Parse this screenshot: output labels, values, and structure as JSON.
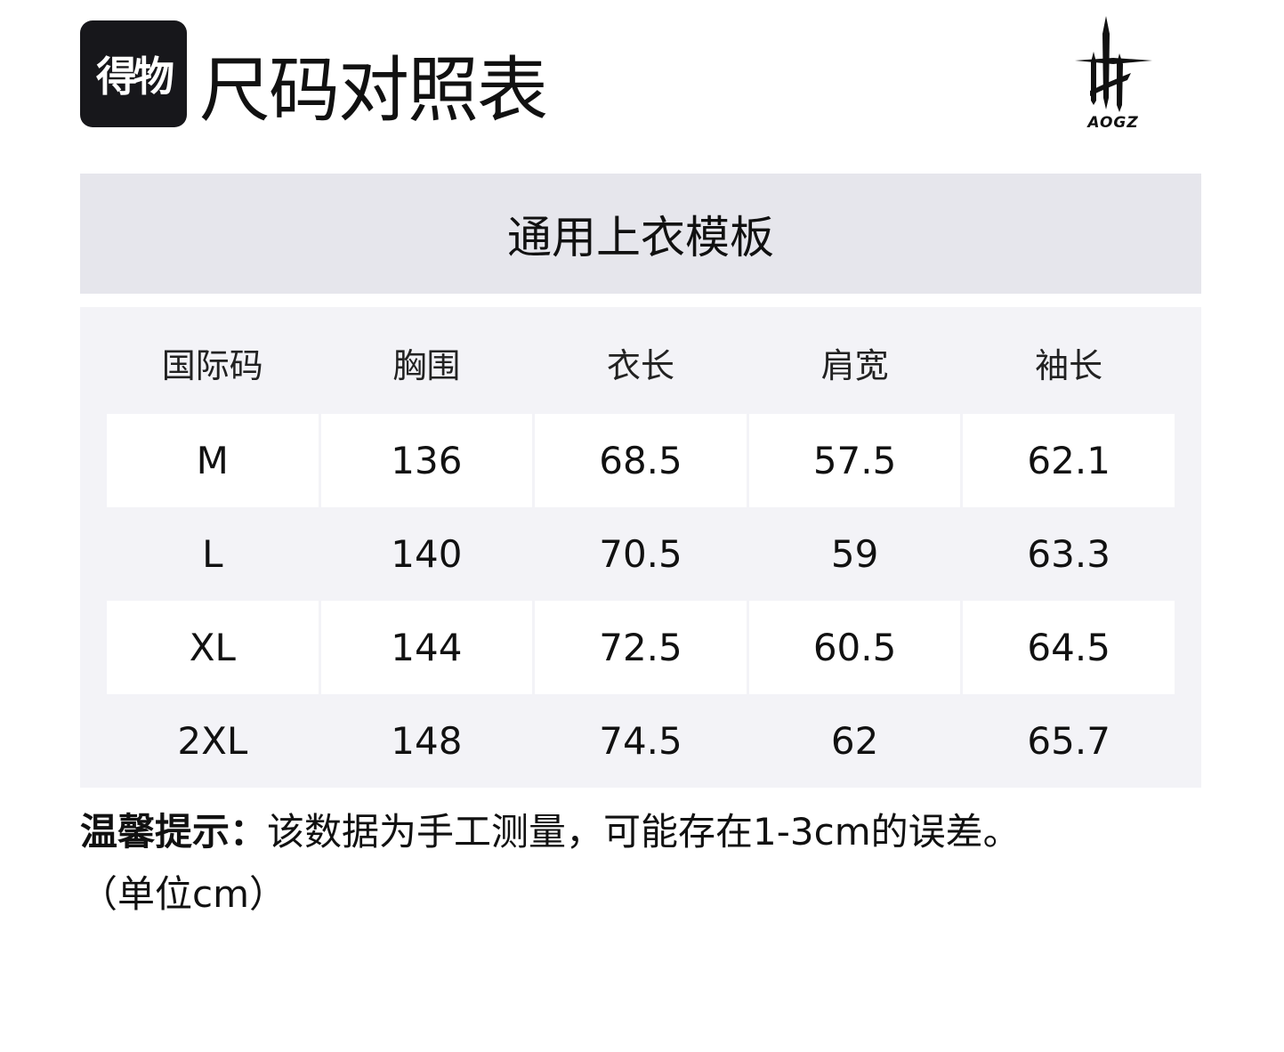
{
  "header": {
    "app_logo": "得物",
    "title": "尺码对照表",
    "brand_logo": "AOGZ"
  },
  "template_title": "通用上衣模板",
  "table": {
    "columns": [
      "国际码",
      "胸围",
      "衣长",
      "肩宽",
      "袖长"
    ],
    "rows": [
      [
        "M",
        "136",
        "68.5",
        "57.5",
        "62.1"
      ],
      [
        "L",
        "140",
        "70.5",
        "59",
        "63.3"
      ],
      [
        "XL",
        "144",
        "72.5",
        "60.5",
        "64.5"
      ],
      [
        "2XL",
        "148",
        "74.5",
        "62",
        "65.7"
      ]
    ]
  },
  "note": {
    "label": "温馨提示：",
    "text": "该数据为手工测量，可能存在1-3cm的误差。",
    "unit": "（单位cm）"
  }
}
